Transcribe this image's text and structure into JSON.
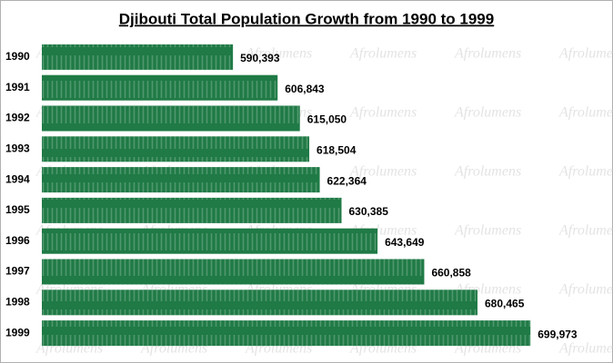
{
  "chart_data": {
    "type": "bar",
    "orientation": "horizontal",
    "title": "Djibouti Total Population Growth from 1990 to 1999",
    "watermark": "Afrolumens",
    "categories": [
      "1990",
      "1991",
      "1992",
      "1993",
      "1994",
      "1995",
      "1996",
      "1997",
      "1998",
      "1999"
    ],
    "values": [
      590393,
      606843,
      615050,
      618504,
      622364,
      630385,
      643649,
      660858,
      680465,
      699973
    ],
    "value_labels": [
      "590,393",
      "606,843",
      "615,050",
      "618,504",
      "622,364",
      "630,385",
      "643,649",
      "660,858",
      "680,465",
      "699,973"
    ],
    "color": "#1f7a45",
    "xlim": [
      520000,
      720000
    ]
  }
}
